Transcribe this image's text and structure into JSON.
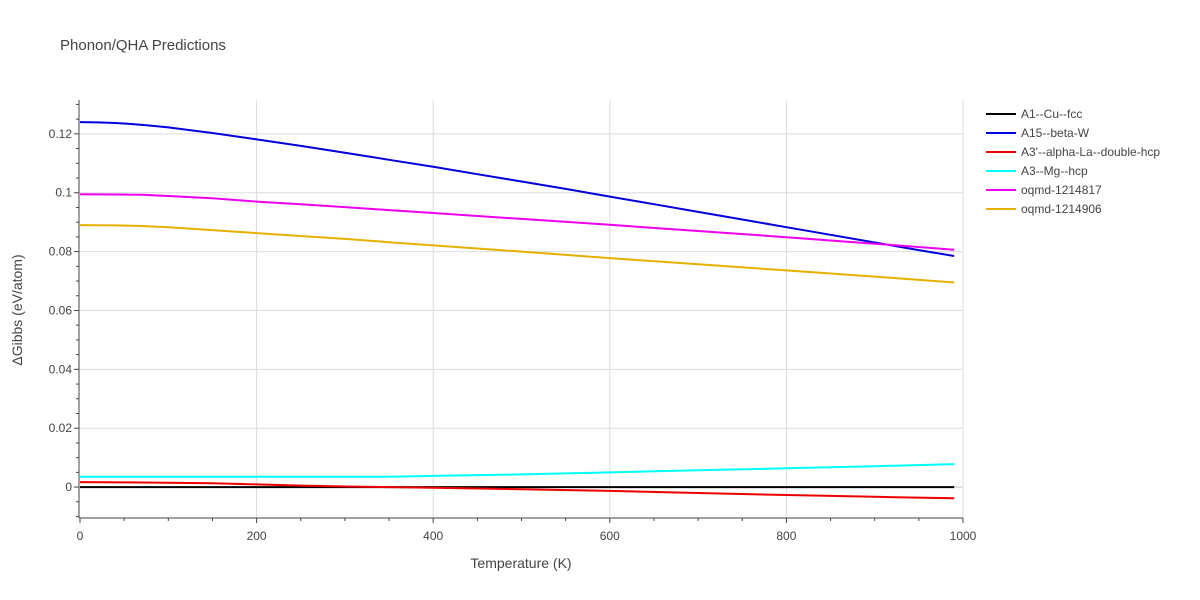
{
  "chart_data": {
    "type": "line",
    "title": "Phonon/QHA Predictions",
    "xlabel": "Temperature (K)",
    "ylabel": "ΔGibbs (eV/atom)",
    "xlim": [
      0,
      1000
    ],
    "ylim": [
      -0.0105,
      0.1315
    ],
    "x_ticks": [
      0,
      200,
      400,
      600,
      800,
      1000
    ],
    "x_tick_labels": [
      "0",
      "200",
      "400",
      "600",
      "800",
      "1000"
    ],
    "y_ticks": [
      0,
      0.02,
      0.04,
      0.06,
      0.08,
      0.1,
      0.12
    ],
    "y_tick_labels": [
      "0",
      "0.02",
      "0.04",
      "0.06",
      "0.08",
      "0.1",
      "0.12"
    ],
    "grid": true,
    "legend_position": "right",
    "series": [
      {
        "name": "A1--Cu--fcc",
        "color": "#000000",
        "x": [
          0,
          100,
          200,
          300,
          400,
          500,
          600,
          700,
          800,
          900,
          990
        ],
        "y": [
          0,
          0,
          0,
          0,
          0,
          0,
          0,
          0,
          0,
          0,
          0
        ]
      },
      {
        "name": "A15--beta-W",
        "color": "#0000dd",
        "x": [
          0,
          20,
          40,
          60,
          80,
          100,
          150,
          200,
          250,
          300,
          350,
          400,
          450,
          500,
          550,
          600,
          650,
          700,
          750,
          800,
          850,
          900,
          950,
          990
        ],
        "y": [
          0.124,
          0.1239,
          0.1237,
          0.1233,
          0.1228,
          0.1222,
          0.1203,
          0.1181,
          0.1159,
          0.1136,
          0.1112,
          0.1088,
          0.1063,
          0.1038,
          0.1013,
          0.0987,
          0.0961,
          0.0935,
          0.0909,
          0.0883,
          0.0857,
          0.0831,
          0.0805,
          0.0785
        ]
      },
      {
        "name": "A3'--alpha-La--double-hcp",
        "color": "#ee0000",
        "x": [
          0,
          50,
          100,
          150,
          200,
          250,
          300,
          350,
          400,
          500,
          600,
          700,
          800,
          900,
          990
        ],
        "y": [
          0.0017,
          0.0016,
          0.0015,
          0.0013,
          0.0009,
          0.0005,
          0.0002,
          0.0,
          -0.0002,
          -0.0007,
          -0.0013,
          -0.002,
          -0.0027,
          -0.0033,
          -0.0038
        ]
      },
      {
        "name": "A3--Mg--hcp",
        "color": "#00ffff",
        "x": [
          0,
          100,
          200,
          300,
          350,
          400,
          500,
          600,
          700,
          800,
          900,
          990
        ],
        "y": [
          0.0035,
          0.0035,
          0.0035,
          0.0035,
          0.0035,
          0.0038,
          0.0043,
          0.005,
          0.0057,
          0.0064,
          0.0071,
          0.0078
        ]
      },
      {
        "name": "oqmd-1214817",
        "color": "#ee00ee",
        "x": [
          0,
          40,
          70,
          100,
          150,
          200,
          250,
          300,
          350,
          400,
          500,
          600,
          700,
          800,
          900,
          990
        ],
        "y": [
          0.0995,
          0.0994,
          0.0993,
          0.0989,
          0.0981,
          0.097,
          0.0961,
          0.0951,
          0.0941,
          0.0931,
          0.0911,
          0.0891,
          0.087,
          0.0849,
          0.0827,
          0.0806
        ]
      },
      {
        "name": "oqmd-1214906",
        "color": "#e6b000",
        "x": [
          0,
          40,
          70,
          100,
          150,
          200,
          250,
          300,
          350,
          400,
          500,
          600,
          700,
          800,
          900,
          990
        ],
        "y": [
          0.089,
          0.0889,
          0.0887,
          0.0883,
          0.0873,
          0.0863,
          0.0853,
          0.0843,
          0.0832,
          0.0821,
          0.08,
          0.0778,
          0.0757,
          0.0736,
          0.0715,
          0.0695
        ]
      }
    ]
  }
}
